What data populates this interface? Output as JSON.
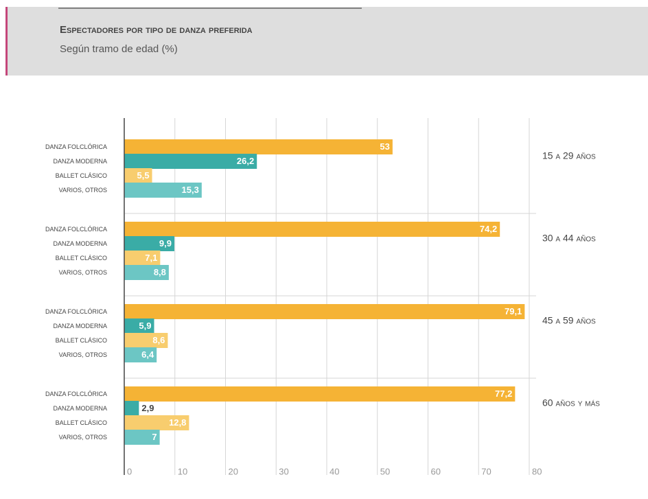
{
  "chart_data": {
    "type": "bar",
    "orientation": "horizontal",
    "title": "Espectadores por tipo de danza preferida",
    "subtitle": "Según tramo de edad (%)",
    "categories": [
      "15 a 29 años",
      "30 a 44 años",
      "45 a 59 años",
      "60 años y más"
    ],
    "series": [
      {
        "name": "DANZA FOLCLÓRICA",
        "color": "#f5b335",
        "values": [
          53,
          74.2,
          79.1,
          77.2
        ],
        "value_labels": [
          "53",
          "74,2",
          "79,1",
          "77,2"
        ]
      },
      {
        "name": "DANZA MODERNA",
        "color": "#3aaca6",
        "values": [
          26.2,
          9.9,
          5.9,
          2.9
        ],
        "value_labels": [
          "26,2",
          "9,9",
          "5,9",
          "2,9"
        ]
      },
      {
        "name": "BALLET CLÁSICO",
        "color": "#f8cd6e",
        "values": [
          5.5,
          7.1,
          8.6,
          12.8
        ],
        "value_labels": [
          "5,5",
          "7,1",
          "8,6",
          "12,8"
        ]
      },
      {
        "name": "VARIOS, OTROS",
        "color": "#6cc6c4",
        "values": [
          15.3,
          8.8,
          6.4,
          7
        ],
        "value_labels": [
          "15,3",
          "8,8",
          "6,4",
          "7"
        ]
      }
    ],
    "xlim": [
      0,
      80
    ],
    "xticks": [
      0,
      10,
      20,
      30,
      40,
      50,
      60,
      70,
      80
    ],
    "grid": true
  }
}
